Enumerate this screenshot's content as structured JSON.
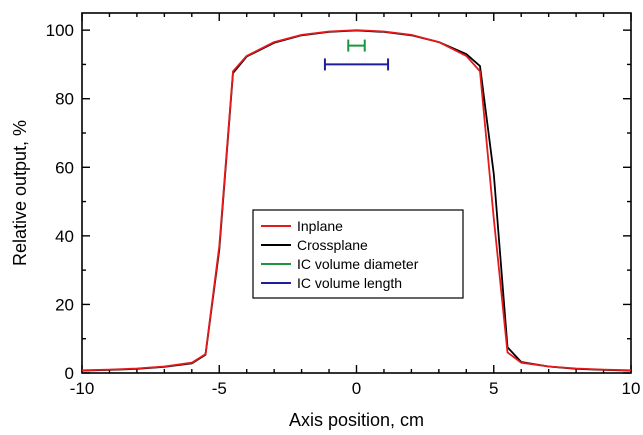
{
  "chart_data": {
    "type": "line",
    "title": "",
    "xlabel": "Axis position, cm",
    "ylabel": "Relative output, %",
    "xlim": [
      -10,
      10
    ],
    "ylim": [
      0,
      105
    ],
    "x_ticks": [
      -10,
      -5,
      0,
      5,
      10
    ],
    "y_ticks": [
      0,
      20,
      40,
      60,
      80,
      100
    ],
    "x_minor_step": 1,
    "y_minor_step": 10,
    "grid": false,
    "legend_position": "center",
    "series": [
      {
        "name": "Inplane",
        "color": "#e41a1c",
        "x": [
          -10,
          -9,
          -8,
          -7,
          -6,
          -5.5,
          -5,
          -4.5,
          -4,
          -3,
          -2,
          -1,
          0,
          1,
          2,
          3,
          4,
          4.5,
          5,
          5.5,
          6,
          7,
          8,
          9,
          10
        ],
        "y": [
          0.8,
          1.0,
          1.3,
          1.9,
          3.0,
          5.5,
          37.0,
          88.0,
          92.5,
          96.5,
          98.6,
          99.6,
          100.0,
          99.6,
          98.6,
          96.5,
          92.5,
          88.0,
          45.0,
          6.0,
          3.0,
          1.9,
          1.3,
          1.0,
          0.8
        ]
      },
      {
        "name": "Crossplane",
        "color": "#000000",
        "x": [
          -10,
          -9,
          -8,
          -7,
          -6,
          -5.5,
          -5,
          -4.5,
          -4,
          -3,
          -2,
          -1,
          0,
          1,
          2,
          3,
          4,
          4.5,
          5,
          5.5,
          6,
          7,
          8,
          9,
          10
        ],
        "y": [
          0.7,
          0.9,
          1.2,
          1.8,
          2.8,
          5.3,
          36.0,
          87.5,
          92.3,
          96.3,
          98.5,
          99.5,
          99.9,
          99.5,
          98.5,
          96.5,
          93.0,
          89.5,
          58.0,
          7.5,
          3.2,
          1.9,
          1.2,
          0.9,
          0.7
        ]
      },
      {
        "name": "IC volume diameter",
        "color": "#1a9641",
        "x": [
          -0.3,
          0.3
        ],
        "y": [
          95.5,
          95.5
        ],
        "style": "range"
      },
      {
        "name": "IC volume length",
        "color": "#1f1f9e",
        "x": [
          -1.15,
          1.15
        ],
        "y": [
          90.0,
          90.0
        ],
        "style": "range"
      }
    ]
  }
}
